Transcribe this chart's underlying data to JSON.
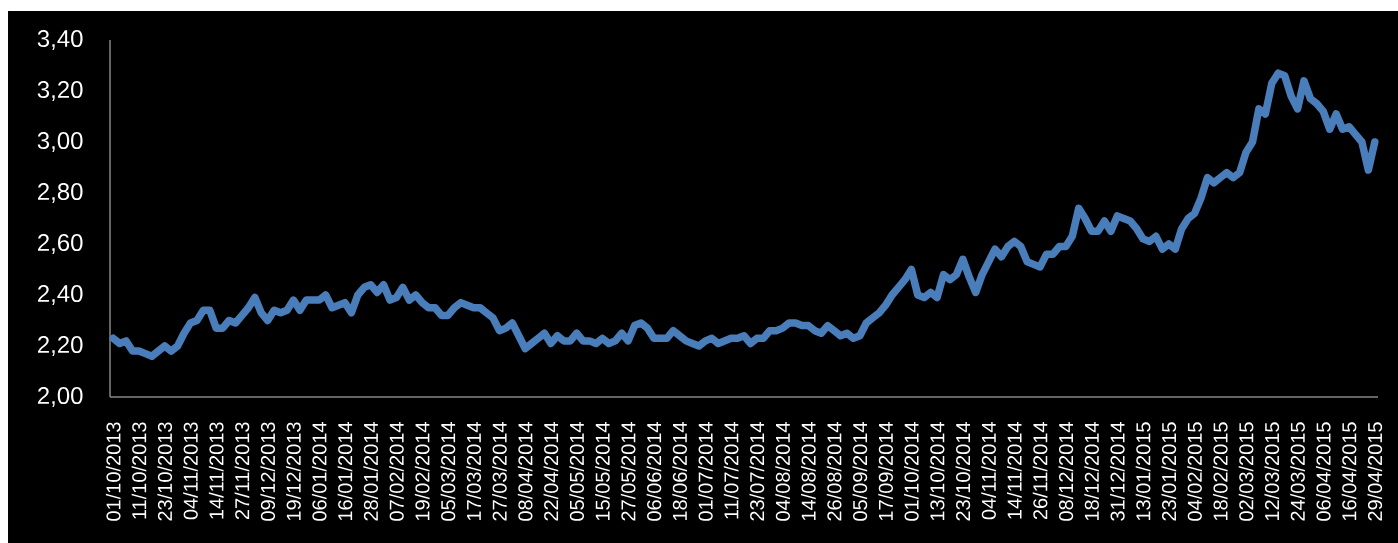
{
  "chart_data": {
    "type": "line",
    "color": "#4a7ebb",
    "line_style": "solid",
    "ylim": [
      2.0,
      3.4
    ],
    "yticks": [
      {
        "value": 2.0,
        "label": "2,00"
      },
      {
        "value": 2.2,
        "label": "2,20"
      },
      {
        "value": 2.4,
        "label": "2,40"
      },
      {
        "value": 2.6,
        "label": "2,60"
      },
      {
        "value": 2.8,
        "label": "2,80"
      },
      {
        "value": 3.0,
        "label": "3,00"
      },
      {
        "value": 3.2,
        "label": "3,20"
      },
      {
        "value": 3.4,
        "label": "3,40"
      }
    ],
    "categories": [
      "01/10/2013",
      null,
      null,
      null,
      "11/10/2013",
      null,
      null,
      null,
      "23/10/2013",
      null,
      null,
      null,
      "04/11/2013",
      null,
      null,
      null,
      "14/11/2013",
      null,
      null,
      null,
      "27/11/2013",
      null,
      null,
      null,
      "09/12/2013",
      null,
      null,
      null,
      "19/12/2013",
      null,
      null,
      null,
      "06/01/2014",
      null,
      null,
      null,
      "16/01/2014",
      null,
      null,
      null,
      "28/01/2014",
      null,
      null,
      null,
      "07/02/2014",
      null,
      null,
      null,
      "19/02/2014",
      null,
      null,
      null,
      "05/03/2014",
      null,
      null,
      null,
      "17/03/2014",
      null,
      null,
      null,
      "27/03/2014",
      null,
      null,
      null,
      "08/04/2014",
      null,
      null,
      null,
      "22/04/2014",
      null,
      null,
      null,
      "05/05/2014",
      null,
      null,
      null,
      "15/05/2014",
      null,
      null,
      null,
      "27/05/2014",
      null,
      null,
      null,
      "06/06/2014",
      null,
      null,
      null,
      "18/06/2014",
      null,
      null,
      null,
      "01/07/2014",
      null,
      null,
      null,
      "11/07/2014",
      null,
      null,
      null,
      "23/07/2014",
      null,
      null,
      null,
      "04/08/2014",
      null,
      null,
      null,
      "14/08/2014",
      null,
      null,
      null,
      "26/08/2014",
      null,
      null,
      null,
      "05/09/2014",
      null,
      null,
      null,
      "17/09/2014",
      null,
      null,
      null,
      "01/10/2014",
      null,
      null,
      null,
      "13/10/2014",
      null,
      null,
      null,
      "23/10/2014",
      null,
      null,
      null,
      "04/11/2014",
      null,
      null,
      null,
      "14/11/2014",
      null,
      null,
      null,
      "26/11/2014",
      null,
      null,
      null,
      "08/12/2014",
      null,
      null,
      null,
      "18/12/2014",
      null,
      null,
      null,
      "31/12/2014",
      null,
      null,
      null,
      "13/01/2015",
      null,
      null,
      null,
      "23/01/2015",
      null,
      null,
      null,
      "04/02/2015",
      null,
      null,
      null,
      "18/02/2015",
      null,
      null,
      null,
      "02/03/2015",
      null,
      null,
      null,
      "12/03/2015",
      null,
      null,
      null,
      "24/03/2015",
      null,
      null,
      null,
      "06/04/2015",
      null,
      null,
      null,
      "16/04/2015",
      null,
      null,
      null,
      "29/04/2015"
    ],
    "values": [
      2.23,
      2.21,
      2.22,
      2.18,
      2.18,
      2.17,
      2.16,
      2.18,
      2.2,
      2.18,
      2.2,
      2.25,
      2.29,
      2.3,
      2.34,
      2.34,
      2.27,
      2.27,
      2.3,
      2.29,
      2.32,
      2.35,
      2.39,
      2.33,
      2.3,
      2.34,
      2.33,
      2.34,
      2.38,
      2.34,
      2.38,
      2.38,
      2.38,
      2.4,
      2.35,
      2.36,
      2.37,
      2.33,
      2.4,
      2.43,
      2.44,
      2.41,
      2.44,
      2.38,
      2.39,
      2.43,
      2.38,
      2.4,
      2.37,
      2.35,
      2.35,
      2.32,
      2.32,
      2.35,
      2.37,
      2.36,
      2.35,
      2.35,
      2.33,
      2.31,
      2.26,
      2.27,
      2.29,
      2.24,
      2.19,
      2.21,
      2.23,
      2.25,
      2.21,
      2.24,
      2.22,
      2.22,
      2.25,
      2.22,
      2.22,
      2.21,
      2.23,
      2.21,
      2.22,
      2.25,
      2.22,
      2.28,
      2.29,
      2.27,
      2.23,
      2.23,
      2.23,
      2.26,
      2.24,
      2.22,
      2.21,
      2.2,
      2.22,
      2.23,
      2.21,
      2.22,
      2.23,
      2.23,
      2.24,
      2.21,
      2.23,
      2.23,
      2.26,
      2.26,
      2.27,
      2.29,
      2.29,
      2.28,
      2.28,
      2.26,
      2.25,
      2.28,
      2.26,
      2.24,
      2.25,
      2.23,
      2.24,
      2.29,
      2.31,
      2.33,
      2.36,
      2.4,
      2.43,
      2.46,
      2.5,
      2.4,
      2.39,
      2.41,
      2.39,
      2.48,
      2.46,
      2.48,
      2.54,
      2.47,
      2.41,
      2.48,
      2.53,
      2.58,
      2.55,
      2.59,
      2.61,
      2.59,
      2.53,
      2.52,
      2.51,
      2.56,
      2.56,
      2.59,
      2.59,
      2.63,
      2.74,
      2.7,
      2.65,
      2.65,
      2.69,
      2.65,
      2.71,
      2.7,
      2.69,
      2.66,
      2.62,
      2.61,
      2.63,
      2.58,
      2.6,
      2.58,
      2.66,
      2.7,
      2.72,
      2.78,
      2.86,
      2.84,
      2.86,
      2.88,
      2.86,
      2.88,
      2.96,
      3.0,
      3.13,
      3.11,
      3.23,
      3.27,
      3.26,
      3.18,
      3.13,
      3.24,
      3.17,
      3.15,
      3.12,
      3.05,
      3.11,
      3.05,
      3.06,
      3.03,
      3.0,
      2.89,
      3.0
    ]
  }
}
